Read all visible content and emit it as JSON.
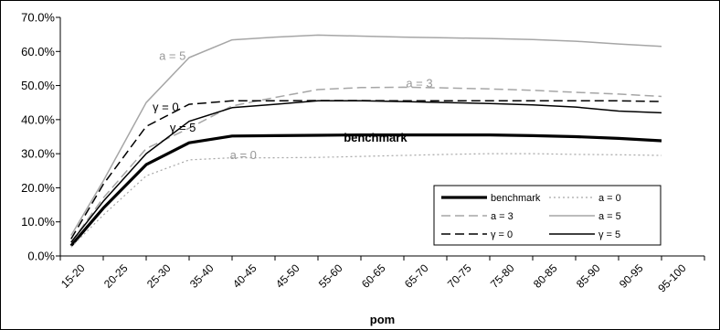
{
  "chart_data": {
    "type": "line",
    "xlabel": "pom",
    "ylabel": "",
    "ylim": [
      0,
      0.7
    ],
    "yticks": [
      "0.0%",
      "10.0%",
      "20.0%",
      "30.0%",
      "40.0%",
      "50.0%",
      "60.0%",
      "70.0%"
    ],
    "categories": [
      "15-20",
      "20-25",
      "25-30",
      "35-40",
      "40-45",
      "45-50",
      "55-60",
      "60-65",
      "65-70",
      "70-75",
      "75-80",
      "80-85",
      "85-90",
      "90-95",
      "95-100"
    ],
    "point_x": [
      0.25,
      1.0,
      2.0,
      3.0,
      4.0,
      5.0,
      6.0,
      7.0,
      8.0,
      9.0,
      10.0,
      11.0,
      12.0,
      13.0,
      14.0
    ],
    "grid": false,
    "legend_position": "bottom-right",
    "series": [
      {
        "name": "benchmark",
        "color": "#000000",
        "dash": "solid",
        "weight": "heavy",
        "values": [
          0.03,
          0.14,
          0.268,
          0.332,
          0.352,
          0.353,
          0.354,
          0.355,
          0.355,
          0.355,
          0.355,
          0.353,
          0.35,
          0.345,
          0.338
        ]
      },
      {
        "name": "a = 0",
        "color": "#a6a6a6",
        "dash": "dotted",
        "weight": "thin",
        "values": [
          0.026,
          0.12,
          0.235,
          0.282,
          0.288,
          0.288,
          0.289,
          0.292,
          0.295,
          0.298,
          0.3,
          0.3,
          0.298,
          0.297,
          0.295
        ]
      },
      {
        "name": "a = 3",
        "color": "#a6a6a6",
        "dash": "dashed",
        "weight": "normal",
        "values": [
          0.04,
          0.17,
          0.315,
          0.375,
          0.44,
          0.465,
          0.488,
          0.494,
          0.495,
          0.493,
          0.49,
          0.486,
          0.48,
          0.475,
          0.468
        ]
      },
      {
        "name": "a = 5",
        "color": "#a6a6a6",
        "dash": "solid",
        "weight": "normal",
        "values": [
          0.06,
          0.22,
          0.45,
          0.582,
          0.634,
          0.642,
          0.648,
          0.645,
          0.642,
          0.64,
          0.638,
          0.635,
          0.63,
          0.622,
          0.615
        ]
      },
      {
        "name": "γ = 0",
        "color": "#000000",
        "dash": "dashed",
        "weight": "normal",
        "values": [
          0.05,
          0.21,
          0.38,
          0.445,
          0.455,
          0.455,
          0.456,
          0.456,
          0.455,
          0.455,
          0.455,
          0.455,
          0.455,
          0.455,
          0.453
        ]
      },
      {
        "name": "γ = 5",
        "color": "#000000",
        "dash": "solid",
        "weight": "normal",
        "values": [
          0.04,
          0.16,
          0.3,
          0.395,
          0.435,
          0.445,
          0.455,
          0.455,
          0.453,
          0.45,
          0.447,
          0.443,
          0.437,
          0.425,
          0.42
        ]
      }
    ],
    "annotations": [
      {
        "text": "a = 5",
        "series": "a = 5",
        "x": 2.3,
        "y": 0.575
      },
      {
        "text": "a = 3",
        "series": "a = 3",
        "x": 8.05,
        "y": 0.495
      },
      {
        "text": "γ = 0",
        "series": "γ = 0",
        "x": 2.15,
        "y": 0.425
      },
      {
        "text": "γ = 5",
        "series": "γ = 5",
        "x": 2.55,
        "y": 0.365
      },
      {
        "text": "benchmark",
        "series": "benchmark",
        "x": 6.6,
        "y": 0.335
      },
      {
        "text": "a = 0",
        "series": "a = 0",
        "x": 3.95,
        "y": 0.284
      }
    ]
  }
}
